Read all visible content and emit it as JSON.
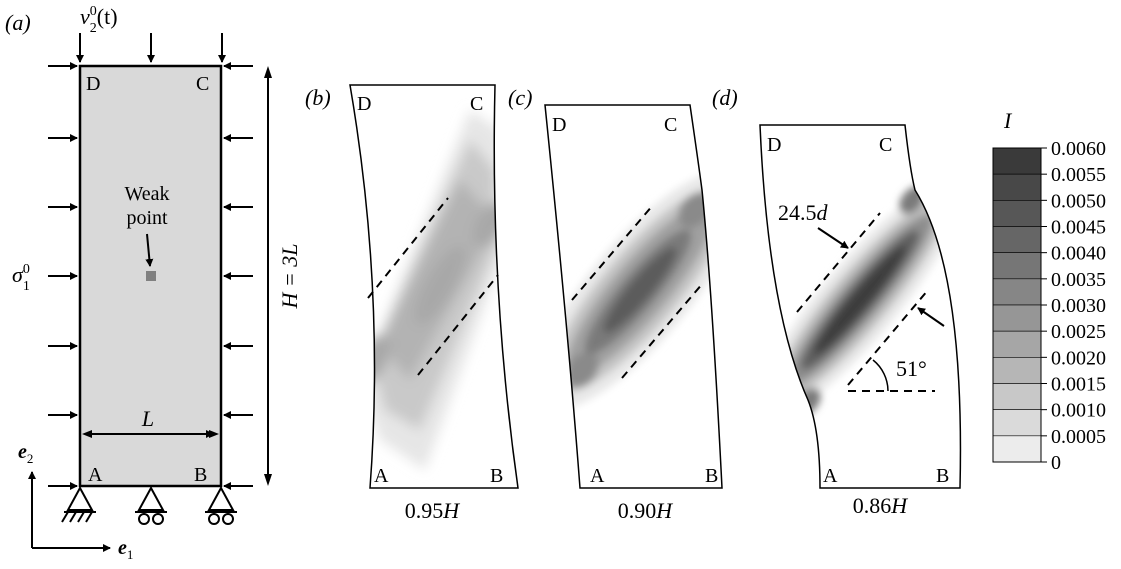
{
  "panel_a": {
    "label": "(a)",
    "v_symbol": "v",
    "v_sup": "0",
    "v_sub": "2",
    "v_arg": "(t)",
    "sigma_symbol": "σ",
    "sigma_sup": "0",
    "sigma_sub": "1",
    "corner_D": "D",
    "corner_C": "C",
    "corner_A": "A",
    "corner_B": "B",
    "weak_line1": "Weak",
    "weak_line2": "point",
    "width_label": "L",
    "height_label": "H = 3L",
    "axis_e1": "e",
    "axis_e1_sub": "1",
    "axis_e2": "e",
    "axis_e2_sub": "2",
    "specimen_fill": "#d9d9d9"
  },
  "panels": [
    {
      "label": "(b)",
      "caption_num": "0.95",
      "caption_var": "H",
      "D": "D",
      "C": "C",
      "A": "A",
      "B": "B"
    },
    {
      "label": "(c)",
      "caption_num": "0.90",
      "caption_var": "H",
      "D": "D",
      "C": "C",
      "A": "A",
      "B": "B"
    },
    {
      "label": "(d)",
      "caption_num": "0.86",
      "caption_var": "H",
      "D": "D",
      "C": "C",
      "A": "A",
      "B": "B",
      "band_width": "24.5",
      "band_width_unit": "d",
      "angle": "51°"
    }
  ],
  "colorbar": {
    "title": "I",
    "levels": [
      "0.0060",
      "0.0055",
      "0.0050",
      "0.0045",
      "0.0040",
      "0.0035",
      "0.0030",
      "0.0025",
      "0.0020",
      "0.0015",
      "0.0010",
      "0.0005",
      "0"
    ],
    "colors": [
      "#3a3a3a",
      "#484848",
      "#575757",
      "#666666",
      "#767676",
      "#868686",
      "#969696",
      "#a6a6a6",
      "#b6b6b6",
      "#c8c8c8",
      "#dadada",
      "#ececec"
    ]
  }
}
